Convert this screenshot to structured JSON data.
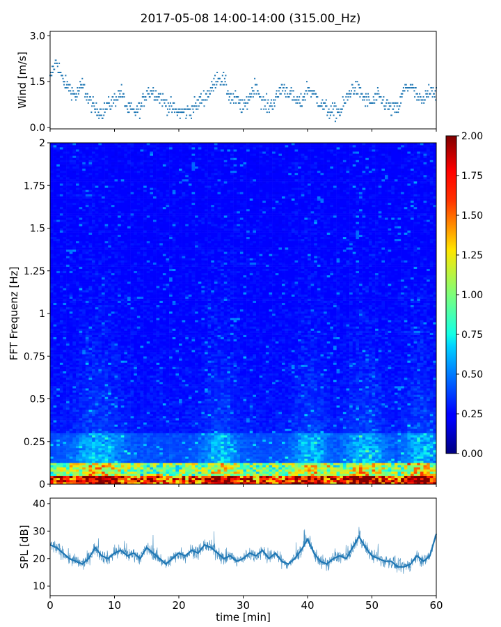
{
  "title": "2017-05-08 14:00-14:00 (315.00_Hz)",
  "chart_data": [
    {
      "type": "scatter",
      "name": "wind",
      "ylabel": "Wind [m/s]",
      "xlim": [
        0,
        60
      ],
      "ylim": [
        0,
        3.1
      ],
      "yticks": [
        0.0,
        1.5,
        3.0
      ],
      "ytick_labels": [
        "0.0",
        "1.5",
        "3.0"
      ],
      "color": "#1f77b4",
      "trend": {
        "x": [
          0,
          1,
          2,
          3,
          4,
          5,
          6,
          7,
          8,
          9,
          10,
          11,
          12,
          13,
          14,
          15,
          16,
          17,
          18,
          19,
          20,
          21,
          22,
          23,
          24,
          25,
          26,
          27,
          28,
          29,
          30,
          31,
          32,
          33,
          34,
          35,
          36,
          37,
          38,
          39,
          40,
          41,
          42,
          43,
          44,
          45,
          46,
          47,
          48,
          49,
          50,
          51,
          52,
          53,
          54,
          55,
          56,
          57,
          58,
          59,
          60
        ],
        "y": [
          1.6,
          2.2,
          1.5,
          1.3,
          1.0,
          1.4,
          0.9,
          0.6,
          0.5,
          0.7,
          0.9,
          1.2,
          0.6,
          0.5,
          0.6,
          1.2,
          1.2,
          1.0,
          0.8,
          0.6,
          0.5,
          0.5,
          0.6,
          0.8,
          1.0,
          1.2,
          1.7,
          1.5,
          1.0,
          0.9,
          0.6,
          1.0,
          1.4,
          0.8,
          0.7,
          0.9,
          1.3,
          1.2,
          0.9,
          0.8,
          1.3,
          1.1,
          0.8,
          0.6,
          0.5,
          0.5,
          0.9,
          1.3,
          1.2,
          0.9,
          0.8,
          1.0,
          0.8,
          0.6,
          0.6,
          1.2,
          1.4,
          1.0,
          0.8,
          1.3,
          1.1
        ]
      }
    },
    {
      "type": "heatmap",
      "name": "spectrogram",
      "ylabel": "FFT Frequenz [Hz]",
      "xlim": [
        0,
        60
      ],
      "ylim": [
        0,
        2
      ],
      "yticks": [
        0,
        0.25,
        0.5,
        0.75,
        1,
        1.25,
        1.5,
        1.75,
        2
      ],
      "ytick_labels": [
        "0",
        "0.25",
        "0.5",
        "0.75",
        "1",
        "1.25",
        "1.5",
        "1.75",
        "2"
      ],
      "colormap": "jet",
      "colorbar": {
        "range": [
          0,
          2
        ],
        "ticks": [
          "0.00",
          "0.25",
          "0.50",
          "0.75",
          "1.00",
          "1.25",
          "1.50",
          "1.75",
          "2.00"
        ]
      },
      "high_energy_bands_hz": [
        0,
        0.05
      ],
      "active_time_windows_min": [
        [
          5,
          10
        ],
        [
          25,
          28
        ],
        [
          39,
          42
        ],
        [
          47,
          51
        ],
        [
          56,
          59
        ]
      ]
    },
    {
      "type": "line",
      "name": "spl",
      "ylabel": "SPL [dB]",
      "xlabel": "time [min]",
      "xlim": [
        0,
        60
      ],
      "ylim": [
        6.5,
        42
      ],
      "xticks": [
        0,
        10,
        20,
        30,
        40,
        50,
        60
      ],
      "xtick_labels": [
        "0",
        "10",
        "20",
        "30",
        "40",
        "50",
        "60"
      ],
      "yticks": [
        10,
        20,
        30,
        40
      ],
      "ytick_labels": [
        "10",
        "20",
        "30",
        "40"
      ],
      "color": "#1f77b4",
      "trend": {
        "x": [
          0,
          1,
          2,
          3,
          4,
          5,
          6,
          7,
          8,
          9,
          10,
          11,
          12,
          13,
          14,
          15,
          16,
          17,
          18,
          19,
          20,
          21,
          22,
          23,
          24,
          25,
          26,
          27,
          28,
          29,
          30,
          31,
          32,
          33,
          34,
          35,
          36,
          37,
          38,
          39,
          40,
          41,
          42,
          43,
          44,
          45,
          46,
          47,
          48,
          49,
          50,
          51,
          52,
          53,
          54,
          55,
          56,
          57,
          58,
          59,
          60
        ],
        "y": [
          25,
          24,
          22,
          20,
          19,
          18,
          20,
          24,
          21,
          20,
          22,
          23,
          21,
          22,
          20,
          24,
          22,
          20,
          18,
          20,
          22,
          21,
          23,
          22,
          25,
          24,
          22,
          20,
          21,
          19,
          20,
          22,
          21,
          23,
          20,
          22,
          19,
          18,
          20,
          23,
          27,
          22,
          19,
          18,
          20,
          21,
          20,
          24,
          28,
          24,
          21,
          20,
          19,
          19,
          17,
          17,
          18,
          21,
          19,
          21,
          29
        ]
      }
    }
  ]
}
